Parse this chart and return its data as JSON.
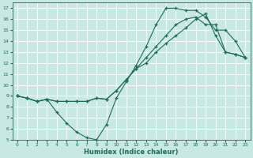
{
  "xlabel": "Humidex (Indice chaleur)",
  "xlim": [
    -0.5,
    23.5
  ],
  "ylim": [
    5,
    17.5
  ],
  "xticks": [
    0,
    1,
    2,
    3,
    4,
    5,
    6,
    7,
    8,
    9,
    10,
    11,
    12,
    13,
    14,
    15,
    16,
    17,
    18,
    19,
    20,
    21,
    22,
    23
  ],
  "yticks": [
    5,
    6,
    7,
    8,
    9,
    10,
    11,
    12,
    13,
    14,
    15,
    16,
    17
  ],
  "bg_color": "#c8e8e4",
  "grid_color": "#b0d8d4",
  "line_color": "#1e6b5a",
  "line1_x": [
    0,
    1,
    2,
    3,
    4,
    5,
    6,
    7,
    8,
    9,
    10,
    11,
    12,
    13,
    14,
    15,
    16,
    17,
    18,
    19,
    20,
    21,
    22,
    23
  ],
  "line1_y": [
    9,
    8.8,
    8.5,
    8.7,
    7.5,
    6.5,
    5.7,
    5.2,
    5.0,
    6.4,
    8.8,
    10.3,
    11.8,
    13.5,
    15.5,
    17.0,
    17.0,
    16.8,
    16.8,
    16.2,
    15.0,
    15.0,
    14.0,
    12.5
  ],
  "line2_x": [
    0,
    1,
    2,
    3,
    4,
    5,
    6,
    7,
    8,
    9,
    10,
    11,
    12,
    13,
    14,
    15,
    16,
    17,
    18,
    19,
    20,
    21,
    22,
    23
  ],
  "line2_y": [
    9,
    8.8,
    8.5,
    8.7,
    8.5,
    8.5,
    8.5,
    8.5,
    8.8,
    8.7,
    9.5,
    10.5,
    11.5,
    12.5,
    13.5,
    14.5,
    15.5,
    16.0,
    16.2,
    15.5,
    15.5,
    13.0,
    12.8,
    12.5
  ],
  "line3_x": [
    0,
    1,
    2,
    3,
    4,
    5,
    6,
    7,
    8,
    9,
    10,
    11,
    12,
    13,
    14,
    15,
    16,
    17,
    18,
    19,
    20,
    21,
    22,
    23
  ],
  "line3_y": [
    9,
    8.8,
    8.5,
    8.7,
    8.5,
    8.5,
    8.5,
    8.5,
    8.8,
    8.7,
    9.5,
    10.5,
    11.5,
    12.0,
    13.0,
    13.8,
    14.5,
    15.2,
    16.0,
    16.5,
    14.5,
    13.0,
    12.8,
    12.5
  ]
}
